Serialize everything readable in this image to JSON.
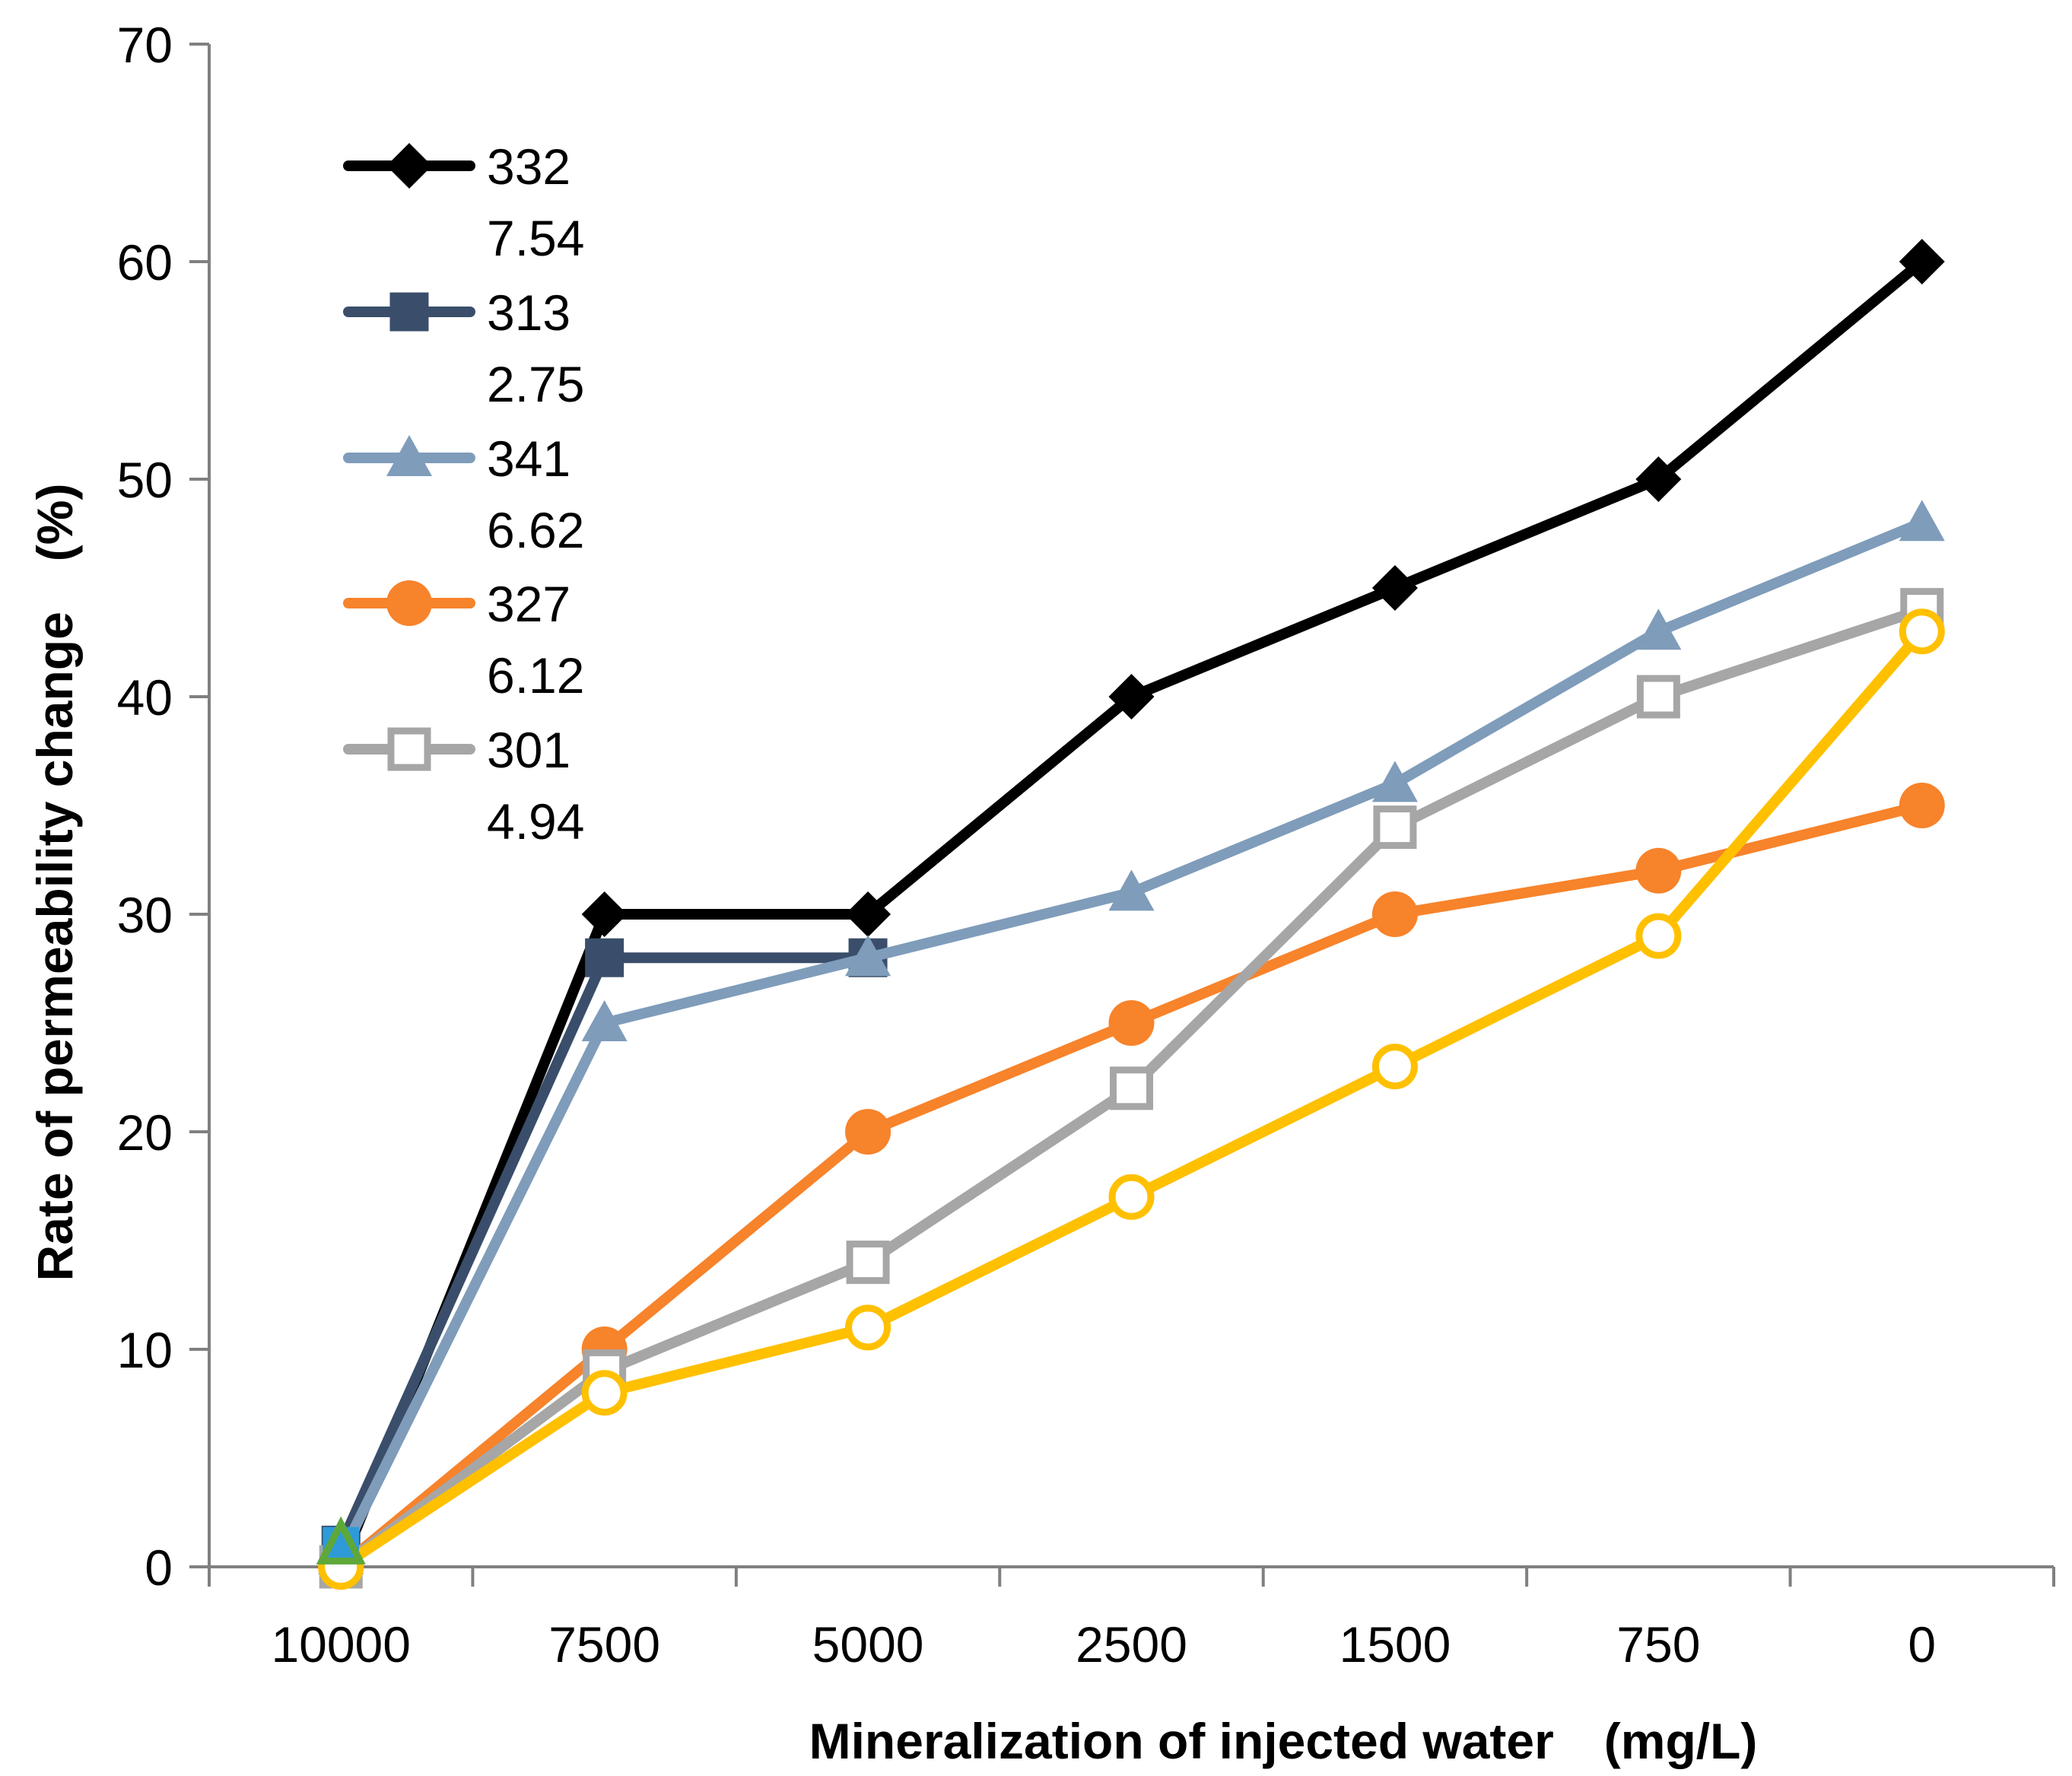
{
  "chart_data": {
    "type": "line",
    "title": "",
    "xlabel": "Mineralization of injected water　(mg/L)",
    "ylabel": "Rate of permeability change　(%)",
    "categories": [
      "10000",
      "7500",
      "5000",
      "2500",
      "1500",
      "750",
      "0"
    ],
    "ylim": [
      0,
      70
    ],
    "yticks": [
      0,
      10,
      20,
      30,
      40,
      50,
      60,
      70
    ],
    "grid": false,
    "legend_position": "top-left",
    "series": [
      {
        "name": "332",
        "sub": "7.54",
        "color": "#000000",
        "marker": "diamond",
        "values": [
          0,
          30,
          30,
          40,
          45,
          50,
          60
        ]
      },
      {
        "name": "313",
        "sub": "2.75",
        "color": "#3a4e6b",
        "marker": "square",
        "values": [
          1,
          28,
          28,
          null,
          null,
          null,
          null
        ]
      },
      {
        "name": "341",
        "sub": "6.62",
        "color": "#7f9cba",
        "marker": "triangle",
        "values": [
          0.5,
          25,
          28,
          31,
          36,
          43,
          48
        ]
      },
      {
        "name": "327",
        "sub": "6.12",
        "color": "#f7832b",
        "marker": "circle",
        "values": [
          0,
          10,
          20,
          25,
          30,
          32,
          35
        ]
      },
      {
        "name": "301",
        "sub": "4.94",
        "color": "#a6a6a6",
        "marker": "open-square",
        "values": [
          0,
          9,
          14,
          22,
          34,
          40,
          44
        ]
      },
      {
        "name": "",
        "sub": "",
        "color": "#ffc000",
        "marker": "open-circle",
        "values": [
          0,
          8,
          11,
          17,
          23,
          29,
          43
        ]
      }
    ],
    "extra_markers": [
      {
        "category": "10000",
        "value": 1,
        "color": "#2e9ad8",
        "marker": "square"
      },
      {
        "category": "10000",
        "value": 1,
        "color": "#5ea83a",
        "marker": "open-triangle"
      }
    ]
  }
}
